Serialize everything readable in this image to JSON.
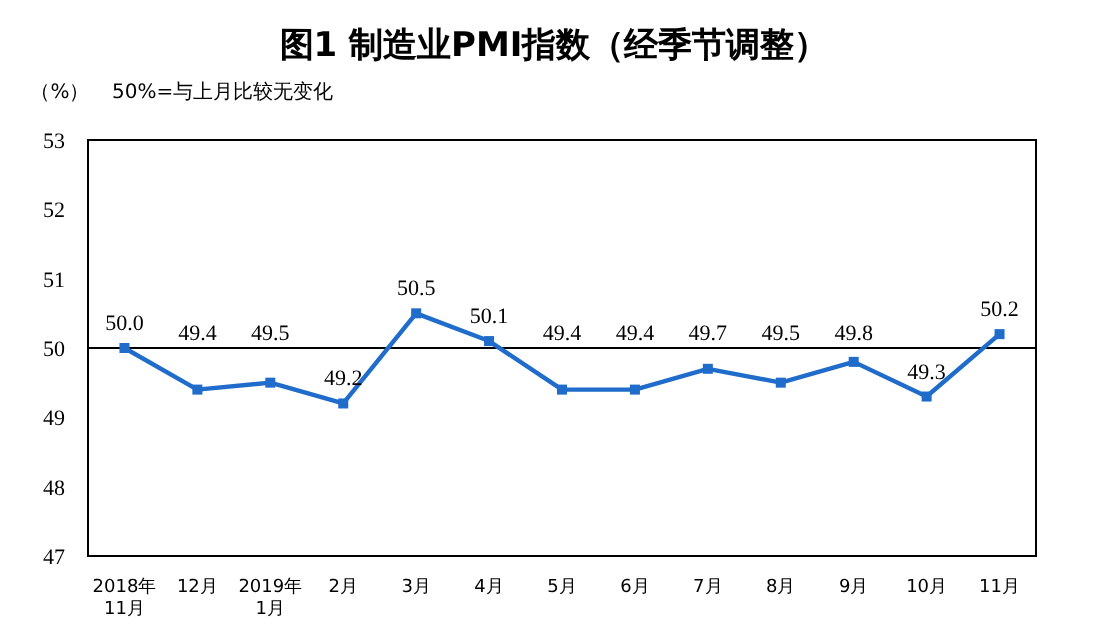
{
  "chart_data": {
    "type": "line",
    "title": "图1  制造业PMI指数（经季节调整）",
    "ylabel": "（%）",
    "annotations": [
      "50%=与上月比较无变化"
    ],
    "categories": [
      "2018年\n11月",
      "12月",
      "2019年\n1月",
      "2月",
      "3月",
      "4月",
      "5月",
      "6月",
      "7月",
      "8月",
      "9月",
      "10月",
      "11月"
    ],
    "series": [
      {
        "color": "#1f6ccb",
        "values": [
          50.0,
          49.4,
          49.5,
          49.2,
          50.5,
          50.1,
          49.4,
          49.4,
          49.7,
          49.5,
          49.8,
          49.3,
          50.2
        ],
        "value_labels": [
          "50.0",
          "49.4",
          "49.5",
          "49.2",
          "50.5",
          "50.1",
          "49.4",
          "49.4",
          "49.7",
          "49.5",
          "49.8",
          "49.3",
          "50.2"
        ]
      }
    ],
    "ylim": [
      47,
      53
    ],
    "yticks": [
      47,
      48,
      49,
      50,
      51,
      52,
      53
    ],
    "marker": "square",
    "grid": false,
    "ref_lines": [
      {
        "axis": "y",
        "value": 50,
        "color": "#000000"
      }
    ]
  }
}
